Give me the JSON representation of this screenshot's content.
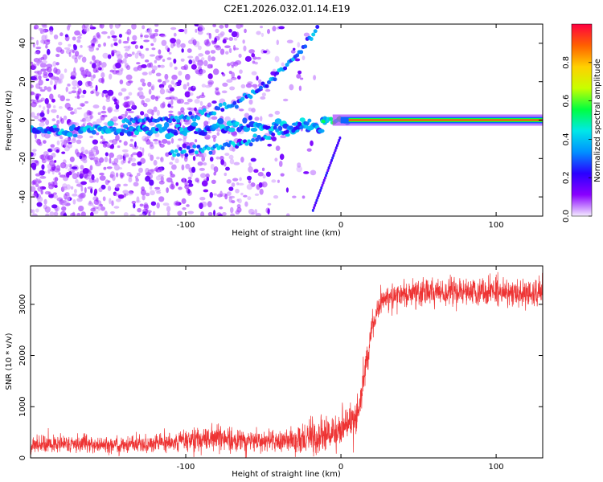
{
  "title": "C2E1.2026.032.01.14.E19",
  "chart_data": [
    {
      "type": "heatmap",
      "name": "spectrogram",
      "xlabel": "Height of straight line (km)",
      "ylabel": "Frequency (Hz)",
      "xlim": [
        -200,
        130
      ],
      "ylim": [
        -50,
        50
      ],
      "xticks": [
        -100,
        0,
        100
      ],
      "xtick_labels": [
        "-100",
        "0",
        "100"
      ],
      "yticks": [
        -40,
        -20,
        0,
        20,
        40
      ],
      "ytick_labels": [
        "-40",
        "-20",
        "0",
        "20",
        "40"
      ],
      "colorbar": {
        "label": "Normalized spectral amplitude",
        "range": [
          0,
          1
        ],
        "ticks": [
          0.0,
          0.2,
          0.4,
          0.6,
          0.8
        ],
        "tick_labels": [
          "0.0",
          "0.2",
          "0.4",
          "0.6",
          "0.8"
        ],
        "colors": [
          "#f4ecff",
          "#8a00ff",
          "#2a00ff",
          "#0090ff",
          "#00e8e8",
          "#00ff40",
          "#c8ff00",
          "#ffd000",
          "#ff6000",
          "#ff0040"
        ]
      },
      "features": {
        "carrier": {
          "x_start": 5,
          "x_end": 130,
          "frequency": 0,
          "amplitude": 0.9
        },
        "upper_branch": {
          "x_start": -140,
          "x_end": -15,
          "f_start": 0,
          "f_end": 48
        },
        "lower_branch": {
          "x_start": -110,
          "x_end": -20,
          "f_start": -16,
          "f_end": 0
        },
        "main_band": {
          "x_start": -200,
          "x_end": -10,
          "frequency": -5
        }
      }
    },
    {
      "type": "line",
      "name": "snr",
      "xlabel": "Height of straight line (km)",
      "ylabel": "SNR (10 * v/v)",
      "xlim": [
        -200,
        130
      ],
      "ylim": [
        0,
        3750
      ],
      "xticks": [
        -100,
        0,
        100
      ],
      "xtick_labels": [
        "-100",
        "0",
        "100"
      ],
      "yticks": [
        0,
        1000,
        2000,
        3000
      ],
      "ytick_labels": [
        "0",
        "1000",
        "2000",
        "3000"
      ],
      "color": "#ee3333",
      "x": [
        -200,
        -180,
        -160,
        -140,
        -120,
        -100,
        -80,
        -60,
        -40,
        -20,
        -10,
        0,
        10,
        15,
        20,
        25,
        30,
        40,
        60,
        80,
        100,
        130
      ],
      "y": [
        250,
        270,
        260,
        240,
        280,
        330,
        400,
        330,
        320,
        380,
        450,
        550,
        800,
        1500,
        2600,
        3000,
        3150,
        3200,
        3250,
        3250,
        3250,
        3200
      ],
      "noise_amplitude": [
        150,
        150,
        150,
        140,
        160,
        200,
        240,
        200,
        200,
        260,
        300,
        330,
        350,
        350,
        250,
        200,
        200,
        220,
        250,
        250,
        250,
        250
      ]
    }
  ]
}
